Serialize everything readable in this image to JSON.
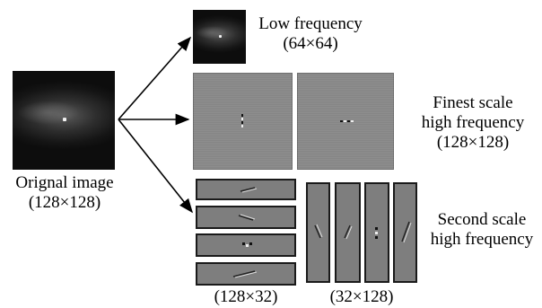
{
  "original": {
    "label_line1": "Orignal image",
    "label_line2": "(128×128)"
  },
  "low": {
    "label_line1": "Low frequency",
    "label_line2": "(64×64)"
  },
  "finest": {
    "label_line1": "Finest scale",
    "label_line2": "high frequency",
    "label_line3": "(128×128)"
  },
  "second": {
    "label_line1": "Second scale",
    "label_line2": "high frequency",
    "horizontal_size": "(128×32)",
    "vertical_size": "(32×128)"
  }
}
